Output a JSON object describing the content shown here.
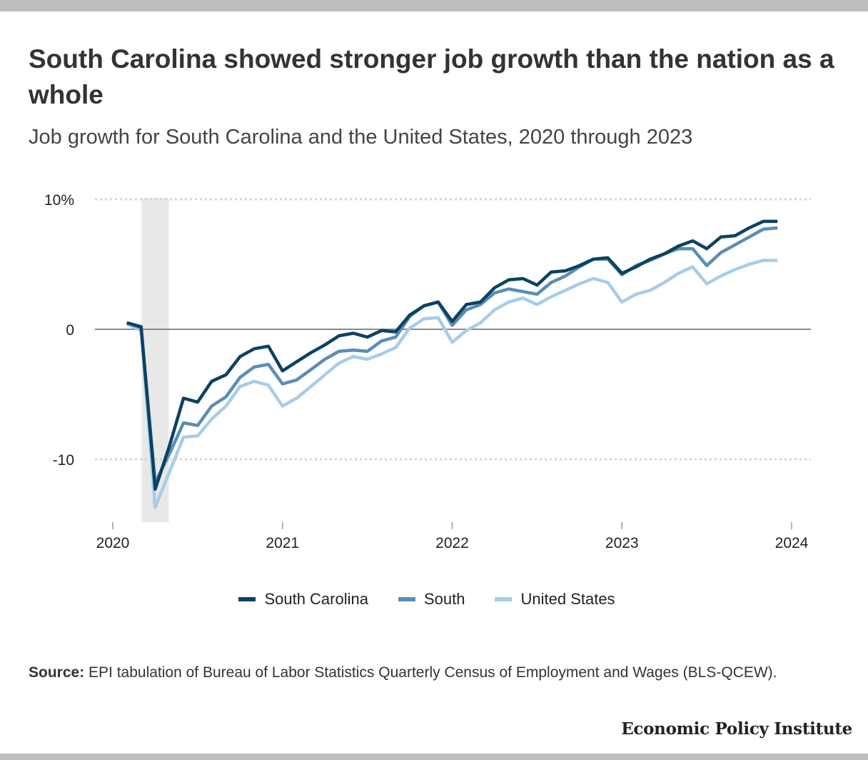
{
  "title": "South Carolina showed stronger job growth than the nation as a whole",
  "subtitle": "Job growth for South Carolina and the United States, 2020 through 2023",
  "source_label": "Source:",
  "source_text": "EPI tabulation of Bureau of Labor Statistics Quarterly Census of Employment and Wages (BLS-QCEW).",
  "organization": "Economic Policy Institute",
  "chart_data": {
    "type": "line",
    "title": "Job growth for South Carolina and the United States, 2020 through 2023",
    "xlabel": "",
    "ylabel": "",
    "xlim": [
      2020,
      2024
    ],
    "ylim": [
      -15,
      10
    ],
    "x_ticks": [
      2020,
      2021,
      2022,
      2023,
      2024
    ],
    "x_tick_labels": [
      "2020",
      "2021",
      "2022",
      "2023",
      "2024"
    ],
    "y_ticks": [
      10,
      0,
      -10
    ],
    "y_tick_labels": [
      "10%",
      "0",
      "-10"
    ],
    "grid": "horizontal dotted",
    "zero_line": true,
    "shaded_region": {
      "x": [
        2020.17,
        2020.33
      ],
      "color": "#e8e8e8"
    },
    "legend_position": "bottom",
    "x": [
      2020.083,
      2020.167,
      2020.25,
      2020.333,
      2020.417,
      2020.5,
      2020.583,
      2020.667,
      2020.75,
      2020.833,
      2020.917,
      2021.0,
      2021.083,
      2021.167,
      2021.25,
      2021.333,
      2021.417,
      2021.5,
      2021.583,
      2021.667,
      2021.75,
      2021.833,
      2021.917,
      2022.0,
      2022.083,
      2022.167,
      2022.25,
      2022.333,
      2022.417,
      2022.5,
      2022.583,
      2022.667,
      2022.75,
      2022.833,
      2022.917,
      2023.0,
      2023.083,
      2023.167,
      2023.25,
      2023.333,
      2023.417,
      2023.5,
      2023.583,
      2023.667,
      2023.75,
      2023.833,
      2023.917
    ],
    "series": [
      {
        "name": "South Carolina",
        "color": "#0b4262",
        "values": [
          0.5,
          0.2,
          -12.3,
          -9.0,
          -5.3,
          -5.6,
          -4.0,
          -3.5,
          -2.1,
          -1.5,
          -1.3,
          -3.2,
          -2.5,
          -1.8,
          -1.2,
          -0.5,
          -0.3,
          -0.6,
          -0.1,
          -0.2,
          1.1,
          1.8,
          2.1,
          0.6,
          1.9,
          2.1,
          3.2,
          3.8,
          3.9,
          3.4,
          4.4,
          4.5,
          4.9,
          5.4,
          5.5,
          4.3,
          4.8,
          5.4,
          5.8,
          6.4,
          6.8,
          6.2,
          7.1,
          7.2,
          7.8,
          8.3,
          8.3
        ]
      },
      {
        "name": "South",
        "color": "#5b8db5",
        "values": [
          0.5,
          0.1,
          -11.8,
          -9.6,
          -7.2,
          -7.4,
          -5.9,
          -5.2,
          -3.7,
          -2.9,
          -2.7,
          -4.2,
          -3.9,
          -3.1,
          -2.3,
          -1.7,
          -1.6,
          -1.7,
          -0.9,
          -0.6,
          1.0,
          1.8,
          2.1,
          0.3,
          1.5,
          1.9,
          2.8,
          3.1,
          2.9,
          2.7,
          3.6,
          4.1,
          4.8,
          5.4,
          5.4,
          4.2,
          4.9,
          5.3,
          5.8,
          6.2,
          6.2,
          4.9,
          5.9,
          6.5,
          7.1,
          7.7,
          7.8
        ]
      },
      {
        "name": "United States",
        "color": "#a6cdea",
        "values": [
          0.4,
          -0.1,
          -13.7,
          -11.0,
          -8.3,
          -8.2,
          -6.9,
          -5.9,
          -4.4,
          -4.0,
          -4.3,
          -5.9,
          -5.3,
          -4.4,
          -3.5,
          -2.6,
          -2.1,
          -2.3,
          -1.9,
          -1.4,
          0.1,
          0.8,
          0.9,
          -1.0,
          -0.1,
          0.5,
          1.5,
          2.1,
          2.4,
          1.9,
          2.5,
          3.0,
          3.5,
          3.9,
          3.6,
          2.1,
          2.7,
          3.0,
          3.6,
          4.3,
          4.8,
          3.5,
          4.1,
          4.6,
          5.0,
          5.3,
          5.3
        ]
      }
    ]
  }
}
